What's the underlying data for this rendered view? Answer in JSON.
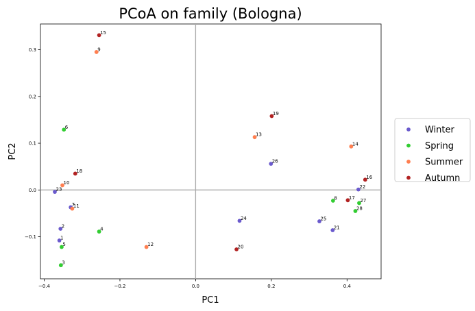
{
  "chart_data": {
    "type": "scatter",
    "title": "PCoA on family (Bologna)",
    "xlabel": "PC1",
    "ylabel": "PC2",
    "xlim": [
      -0.41,
      0.49
    ],
    "ylim": [
      -0.19,
      0.355
    ],
    "xticks": [
      -0.4,
      -0.2,
      0.0,
      0.2,
      0.4
    ],
    "xtick_labels": [
      "−0.4",
      "−0.2",
      "0.0",
      "0.2",
      "0.4"
    ],
    "yticks": [
      -0.1,
      0.0,
      0.1,
      0.2,
      0.3
    ],
    "ytick_labels": [
      "−0.1",
      "0.0",
      "0.1",
      "0.2",
      "0.3"
    ],
    "reference_lines": {
      "x": 0,
      "y": 0
    },
    "grid": false,
    "legend_position": "outside-right",
    "series": [
      {
        "name": "Winter",
        "color": "#6a5acd",
        "points": [
          {
            "label": "1",
            "x": -0.36,
            "y": -0.108
          },
          {
            "label": "2",
            "x": -0.357,
            "y": -0.083
          },
          {
            "label": "7",
            "x": -0.33,
            "y": -0.037
          },
          {
            "label": "21",
            "x": 0.362,
            "y": -0.086
          },
          {
            "label": "22",
            "x": 0.43,
            "y": 0.001
          },
          {
            "label": "23",
            "x": -0.372,
            "y": -0.004
          },
          {
            "label": "24",
            "x": 0.116,
            "y": -0.066
          },
          {
            "label": "25",
            "x": 0.327,
            "y": -0.067
          },
          {
            "label": "26",
            "x": 0.199,
            "y": 0.056
          }
        ]
      },
      {
        "name": "Spring",
        "color": "#32cd32",
        "points": [
          {
            "label": "3",
            "x": -0.356,
            "y": -0.161
          },
          {
            "label": "4",
            "x": -0.255,
            "y": -0.089
          },
          {
            "label": "5",
            "x": -0.354,
            "y": -0.122
          },
          {
            "label": "6",
            "x": -0.348,
            "y": 0.129
          },
          {
            "label": "8",
            "x": 0.363,
            "y": -0.023
          },
          {
            "label": "27",
            "x": 0.432,
            "y": -0.028
          },
          {
            "label": "28",
            "x": 0.422,
            "y": -0.045
          }
        ]
      },
      {
        "name": "Summer",
        "color": "#ff7f50",
        "points": [
          {
            "label": "9",
            "x": -0.262,
            "y": 0.295
          },
          {
            "label": "10",
            "x": -0.352,
            "y": 0.01
          },
          {
            "label": "11",
            "x": -0.326,
            "y": -0.04
          },
          {
            "label": "12",
            "x": -0.13,
            "y": -0.122
          },
          {
            "label": "13",
            "x": 0.156,
            "y": 0.113
          },
          {
            "label": "14",
            "x": 0.411,
            "y": 0.093
          }
        ]
      },
      {
        "name": "Autumn",
        "color": "#b22222",
        "points": [
          {
            "label": "15",
            "x": -0.255,
            "y": 0.331
          },
          {
            "label": "16",
            "x": 0.448,
            "y": 0.022
          },
          {
            "label": "17",
            "x": 0.402,
            "y": -0.022
          },
          {
            "label": "18",
            "x": -0.318,
            "y": 0.035
          },
          {
            "label": "19",
            "x": 0.201,
            "y": 0.158
          },
          {
            "label": "20",
            "x": 0.108,
            "y": -0.127
          }
        ]
      }
    ]
  }
}
